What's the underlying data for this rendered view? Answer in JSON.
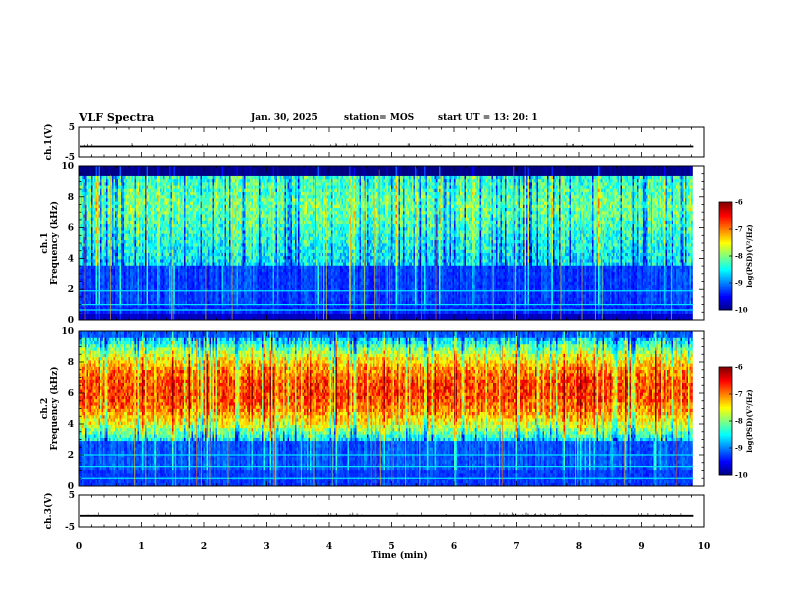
{
  "header": {
    "title": "VLF Spectra",
    "date": "Jan. 30, 2025",
    "station": "station= MOS",
    "start_ut": "start  UT =   13: 20: 1"
  },
  "chart_data": [
    {
      "id": "ch1-voltage",
      "type": "line",
      "title": "",
      "ylabel": "ch.1(V)",
      "ylim": [
        -5,
        5
      ],
      "yticks": [
        "5",
        "-5"
      ],
      "series": [
        {
          "name": "ch.1 voltage",
          "level": -1.5
        }
      ],
      "xlim": [
        0,
        10
      ]
    },
    {
      "id": "ch1-spectrogram",
      "type": "heatmap",
      "ylabel": "ch.1 Frequency (kHz)",
      "ylim": [
        0,
        10
      ],
      "yticks": [
        "0",
        "2",
        "4",
        "6",
        "8",
        "10"
      ],
      "xlim": [
        0,
        10
      ],
      "description_bands": {
        "strong_band_khz": [
          3.5,
          10
        ],
        "peak_level": -8.2,
        "background_level": -9.6,
        "lines_khz": [
          1.9,
          1.0,
          0.65
        ]
      },
      "colorbar": {
        "label": "log(PSD)(V²/Hz)",
        "range": [
          -10,
          -6
        ],
        "ticks": [
          "-6",
          "-7",
          "-8",
          "-9",
          "-10"
        ]
      }
    },
    {
      "id": "ch2-spectrogram",
      "type": "heatmap",
      "ylabel": "ch.2 Frequency (kHz)",
      "ylim": [
        0,
        10
      ],
      "yticks": [
        "0",
        "2",
        "4",
        "6",
        "8",
        "10"
      ],
      "xlim": [
        0,
        10
      ],
      "description_bands": {
        "strong_band_khz": [
          3.0,
          9.5
        ],
        "peak_level": -6.9,
        "peak_center_khz": 6.2,
        "background_level": -9.5,
        "lines_khz": [
          2.0,
          1.25,
          0.5
        ]
      },
      "colorbar": {
        "label": "log(PSD)(V²/Hz)",
        "range": [
          -10,
          -6
        ],
        "ticks": [
          "-6",
          "-7",
          "-8",
          "-9",
          "-10"
        ]
      }
    },
    {
      "id": "ch3-voltage",
      "type": "line",
      "ylabel": "ch.3(V)",
      "ylim": [
        -5,
        5
      ],
      "yticks": [
        "5",
        "-5"
      ],
      "series": [
        {
          "name": "ch.3 voltage",
          "level": -1.5
        }
      ],
      "xlim": [
        0,
        10
      ],
      "xlabel": "Time  (min)",
      "xticks": [
        "0",
        "1",
        "2",
        "3",
        "4",
        "5",
        "6",
        "7",
        "8",
        "9",
        "10"
      ]
    }
  ]
}
